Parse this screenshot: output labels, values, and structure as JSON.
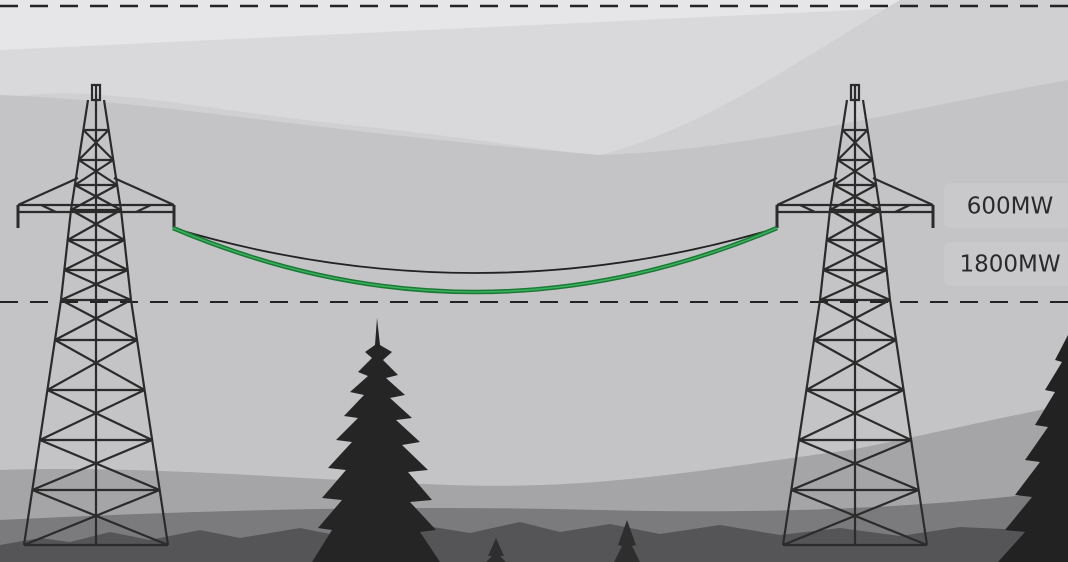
{
  "labels": [
    "600MW",
    "1800MW"
  ]
}
